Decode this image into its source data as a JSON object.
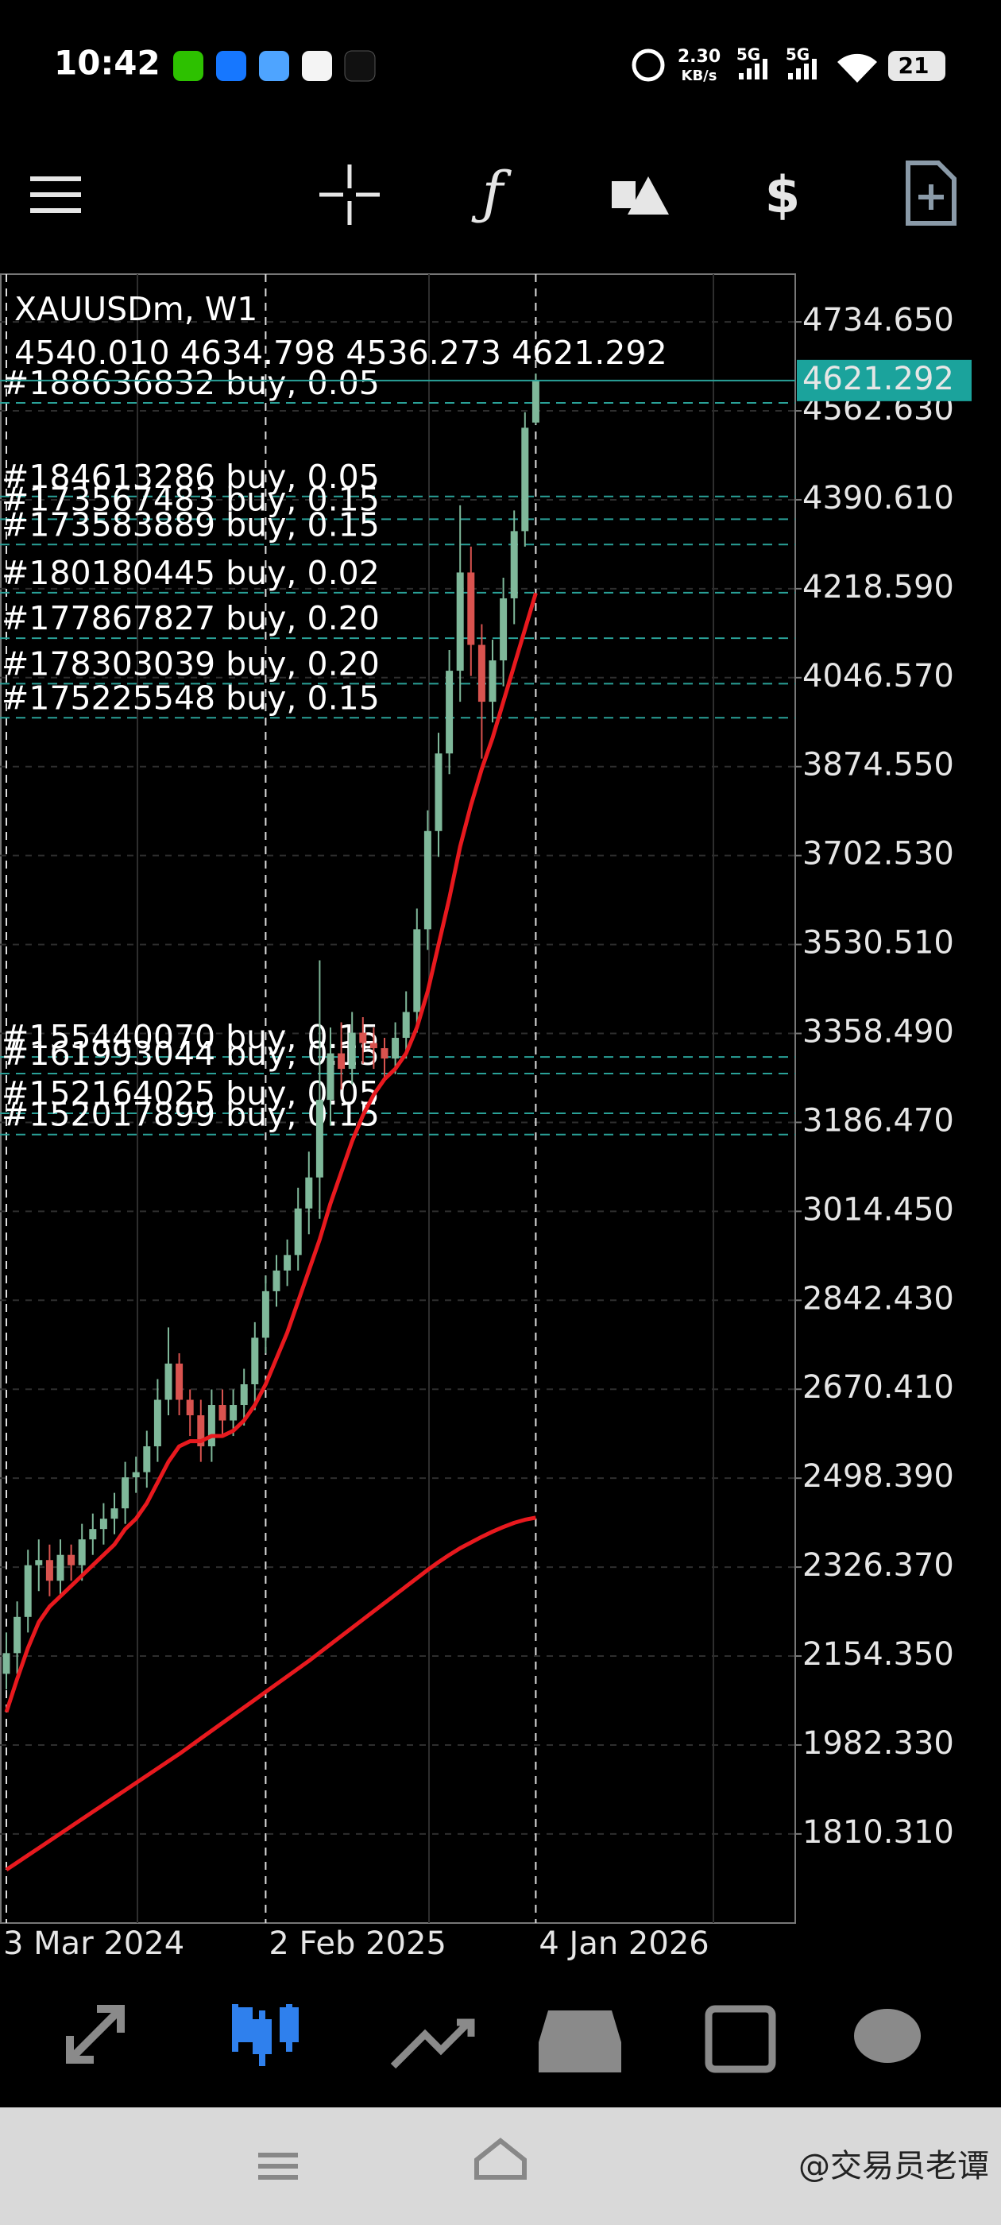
{
  "status_bar": {
    "time": "10:42",
    "net_speed": "2.30",
    "net_unit": "KB/s",
    "sim1": "5G",
    "sim2": "5G",
    "battery": "21"
  },
  "chart_data": {
    "type": "candlestick",
    "title": "XAUUSDm, W1",
    "ohlc_labels": [
      "4540.010",
      "4634.798",
      "4536.273",
      "4621.292"
    ],
    "price_tag": "4621.292",
    "categories": [
      "3 Mar 2024",
      null,
      null,
      null,
      null,
      null,
      null,
      null,
      null,
      null,
      null,
      null,
      null,
      null,
      null,
      null,
      null,
      null,
      null,
      null,
      null,
      null,
      null,
      null,
      "2 Feb 2025",
      null,
      null,
      null,
      null,
      null,
      null,
      null,
      null,
      null,
      null,
      null,
      null,
      null,
      null,
      null,
      null,
      null,
      null,
      null,
      null,
      null,
      null,
      null,
      null,
      "4 Jan 2026"
    ],
    "open": [
      2120,
      2160,
      2230,
      2330,
      2340,
      2300,
      2350,
      2330,
      2380,
      2400,
      2420,
      2440,
      2500,
      2510,
      2560,
      2650,
      2720,
      2650,
      2620,
      2560,
      2640,
      2610,
      2640,
      2680,
      2770,
      2860,
      2900,
      2930,
      3020,
      3080,
      3230,
      3320,
      3290,
      3360,
      3340,
      3330,
      3310,
      3350,
      3400,
      3560,
      3750,
      3900,
      4060,
      4250,
      4110,
      4000,
      4080,
      4200,
      4330,
      4540.01
    ],
    "high": [
      2200,
      2260,
      2360,
      2380,
      2370,
      2380,
      2370,
      2410,
      2430,
      2450,
      2470,
      2530,
      2540,
      2590,
      2690,
      2790,
      2740,
      2670,
      2650,
      2670,
      2670,
      2670,
      2710,
      2800,
      2890,
      2930,
      2960,
      3060,
      3130,
      3500,
      3370,
      3380,
      3400,
      3390,
      3370,
      3350,
      3380,
      3440,
      3600,
      3790,
      3940,
      4100,
      4380,
      4300,
      4150,
      4120,
      4240,
      4370,
      4560,
      4634.798
    ],
    "low": [
      2090,
      2120,
      2200,
      2280,
      2270,
      2270,
      2300,
      2300,
      2350,
      2370,
      2390,
      2410,
      2470,
      2480,
      2530,
      2620,
      2620,
      2580,
      2530,
      2530,
      2580,
      2580,
      2600,
      2630,
      2740,
      2830,
      2870,
      2900,
      2970,
      3000,
      3180,
      3250,
      3260,
      3300,
      3290,
      3270,
      3280,
      3310,
      3360,
      3520,
      3700,
      3860,
      4000,
      4050,
      3890,
      3960,
      4030,
      4150,
      4300,
      4536.273
    ],
    "close": [
      2160,
      2230,
      2330,
      2340,
      2300,
      2350,
      2330,
      2380,
      2400,
      2420,
      2440,
      2500,
      2510,
      2560,
      2650,
      2720,
      2650,
      2620,
      2560,
      2640,
      2610,
      2640,
      2680,
      2770,
      2860,
      2900,
      2930,
      3020,
      3080,
      3230,
      3320,
      3290,
      3360,
      3340,
      3330,
      3310,
      3350,
      3400,
      3560,
      3750,
      3900,
      4060,
      4250,
      4110,
      4000,
      4080,
      4200,
      4330,
      4530,
      4621.292
    ],
    "up_color": "#7fb89a",
    "down_color": "#d9534f",
    "ma_lines": [
      {
        "color": "#e8191e",
        "values": [
          2046,
          2110,
          2170,
          2220,
          2250,
          2270,
          2290,
          2310,
          2330,
          2350,
          2370,
          2400,
          2420,
          2450,
          2490,
          2530,
          2560,
          2570,
          2570,
          2580,
          2580,
          2590,
          2610,
          2640,
          2680,
          2730,
          2780,
          2840,
          2900,
          2960,
          3030,
          3090,
          3150,
          3200,
          3240,
          3270,
          3290,
          3320,
          3370,
          3440,
          3530,
          3620,
          3720,
          3800,
          3870,
          3930,
          4000,
          4070,
          4140,
          4210
        ]
      },
      {
        "color": "#e8191e",
        "values": [
          1741,
          1755,
          1769,
          1783,
          1797,
          1811,
          1825,
          1839,
          1853,
          1867,
          1881,
          1895,
          1909,
          1923,
          1937,
          1951,
          1965,
          1980,
          1995,
          2010,
          2025,
          2040,
          2055,
          2070,
          2085,
          2100,
          2115,
          2130,
          2145,
          2161,
          2177,
          2193,
          2209,
          2225,
          2241,
          2257,
          2273,
          2289,
          2305,
          2321,
          2336,
          2350,
          2363,
          2374,
          2385,
          2395,
          2404,
          2412,
          2418,
          2422
        ]
      }
    ],
    "orders": [
      {
        "label": "#188636832 buy, 0.05",
        "price": 4578
      },
      {
        "label": "#184613286 buy, 0.05",
        "price": 4397
      },
      {
        "label": "#173567483 buy, 0.15",
        "price": 4353
      },
      {
        "label": "#173583889 buy, 0.15",
        "price": 4304
      },
      {
        "label": "#180180445 buy, 0.02",
        "price": 4211
      },
      {
        "label": "#177867827 buy, 0.20",
        "price": 4123
      },
      {
        "label": "#178303039 buy, 0.20",
        "price": 4035
      },
      {
        "label": "#175225548 buy, 0.15",
        "price": 3969
      },
      {
        "label": "#155440070 buy, 0.15",
        "price": 3313
      },
      {
        "label": "#161993044 buy, 0.15",
        "price": 3281
      },
      {
        "label": "#152164025 buy, 0.05",
        "price": 3204
      },
      {
        "label": "#152017899 buy, 0.15",
        "price": 3163
      }
    ],
    "order_color": "#2aa198",
    "ylim": [
      1638,
      4827
    ],
    "yticks": [
      {
        "value": 4734.65,
        "label": "4734.650"
      },
      {
        "value": 4562.63,
        "label": "4562.630"
      },
      {
        "value": 4390.61,
        "label": "4390.610"
      },
      {
        "value": 4218.59,
        "label": "4218.590"
      },
      {
        "value": 4046.57,
        "label": "4046.570"
      },
      {
        "value": 3874.55,
        "label": "3874.550"
      },
      {
        "value": 3702.53,
        "label": "3702.530"
      },
      {
        "value": 3530.51,
        "label": "3530.510"
      },
      {
        "value": 3358.49,
        "label": "3358.490"
      },
      {
        "value": 3186.47,
        "label": "3186.470"
      },
      {
        "value": 3014.45,
        "label": "3014.450"
      },
      {
        "value": 2842.43,
        "label": "2842.430"
      },
      {
        "value": 2670.41,
        "label": "2670.410"
      },
      {
        "value": 2498.39,
        "label": "2498.390"
      },
      {
        "value": 2326.37,
        "label": "2326.370"
      },
      {
        "value": 2154.35,
        "label": "2154.350"
      },
      {
        "value": 1982.33,
        "label": "1982.330"
      },
      {
        "value": 1810.31,
        "label": "1810.310"
      }
    ],
    "grid": true
  },
  "watermark": "@交易员老谭"
}
